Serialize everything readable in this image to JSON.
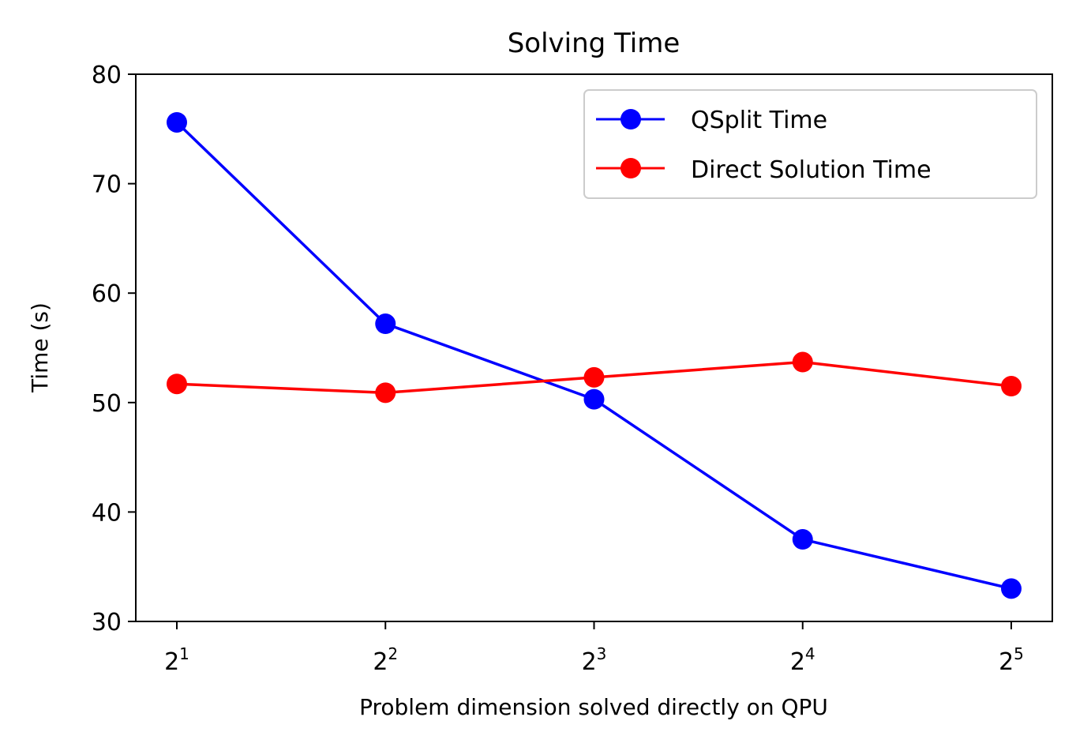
{
  "chart_data": {
    "type": "line",
    "title": "Solving Time",
    "xlabel": "Problem dimension solved directly on QPU",
    "ylabel": "Time (s)",
    "x": [
      2,
      4,
      8,
      16,
      32
    ],
    "xscale": "log2",
    "xticks": [
      {
        "base": "2",
        "exp": "1"
      },
      {
        "base": "2",
        "exp": "2"
      },
      {
        "base": "2",
        "exp": "3"
      },
      {
        "base": "2",
        "exp": "4"
      },
      {
        "base": "2",
        "exp": "5"
      }
    ],
    "ylim": [
      30,
      80
    ],
    "yticks": [
      "30",
      "40",
      "50",
      "60",
      "70",
      "80"
    ],
    "grid": false,
    "legend_position": "top-right",
    "series": [
      {
        "name": "QSplit Time",
        "color": "#0000ff",
        "values": [
          75.6,
          57.2,
          50.3,
          37.5,
          33.0
        ]
      },
      {
        "name": "Direct Solution Time",
        "color": "#ff0000",
        "values": [
          51.7,
          50.9,
          52.3,
          53.7,
          51.5
        ]
      }
    ]
  }
}
